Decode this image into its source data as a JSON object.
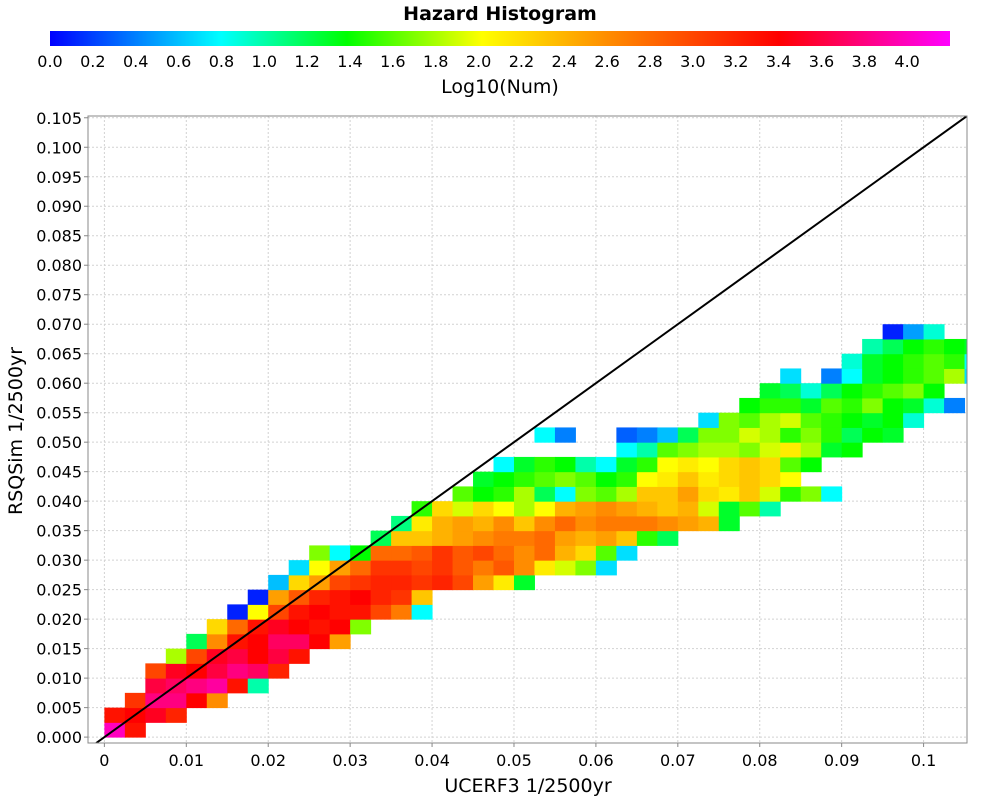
{
  "chart_data": {
    "type": "heatmap",
    "title": "Hazard Histogram",
    "colorbar": {
      "label": "Log10(Num)",
      "range": [
        0,
        4.2
      ],
      "ticks": [
        "0.0",
        "0.2",
        "0.4",
        "0.6",
        "0.8",
        "1.0",
        "1.2",
        "1.4",
        "1.6",
        "1.8",
        "2.0",
        "2.2",
        "2.4",
        "2.6",
        "2.8",
        "3.0",
        "3.2",
        "3.4",
        "3.6",
        "3.8",
        "4.0"
      ]
    },
    "xlabel": "UCERF3 1/2500yr",
    "ylabel": "RSQSim 1/2500yr",
    "xlim": [
      -0.002,
      0.1053
    ],
    "ylim": [
      -0.001,
      0.1053
    ],
    "xticks": [
      "0",
      "0.01",
      "0.02",
      "0.03",
      "0.04",
      "0.05",
      "0.06",
      "0.07",
      "0.08",
      "0.09",
      "0.1"
    ],
    "yticks": [
      "0.000",
      "0.005",
      "0.010",
      "0.015",
      "0.020",
      "0.025",
      "0.030",
      "0.035",
      "0.040",
      "0.045",
      "0.050",
      "0.055",
      "0.060",
      "0.065",
      "0.070",
      "0.075",
      "0.080",
      "0.085",
      "0.090",
      "0.095",
      "0.100",
      "0.105"
    ],
    "bin_size": [
      0.0025,
      0.0025
    ],
    "reference_line": "y = x",
    "grid": true,
    "rows": [
      {
        "y": 0.0,
        "x0": 0.0,
        "values": [
          4.0,
          3.3
        ]
      },
      {
        "y": 0.0025,
        "x0": 0.0,
        "values": [
          3.3,
          3.4,
          3.5,
          3.2
        ]
      },
      {
        "y": 0.005,
        "x0": 0.0025,
        "values": [
          3.1,
          3.8,
          3.8,
          3.4,
          2.6
        ]
      },
      {
        "y": 0.0075,
        "x0": 0.005,
        "values": [
          3.6,
          3.7,
          3.8,
          3.9,
          3.3,
          1.0
        ]
      },
      {
        "y": 0.01,
        "x0": 0.005,
        "values": [
          3.0,
          3.5,
          3.4,
          3.6,
          3.8,
          3.7,
          3.2
        ]
      },
      {
        "y": 0.0125,
        "x0": 0.0075,
        "values": [
          1.8,
          3.0,
          3.5,
          3.6,
          3.4,
          3.6,
          3.3
        ]
      },
      {
        "y": 0.015,
        "x0": 0.01,
        "values": [
          1.2,
          2.6,
          3.3,
          3.4,
          3.7,
          3.7,
          3.4,
          2.5
        ]
      },
      {
        "y": 0.0175,
        "x0": 0.0125,
        "values": [
          2.2,
          2.8,
          3.3,
          3.5,
          3.4,
          3.3,
          3.4,
          1.7
        ]
      },
      {
        "y": 0.02,
        "x0": 0.015,
        "values": [
          0.1,
          2.0,
          3.0,
          3.3,
          3.4,
          3.3,
          3.3,
          3.0,
          2.7,
          0.8
        ]
      },
      {
        "y": 0.0225,
        "x0": 0.0175,
        "values": [
          0.1,
          2.5,
          2.9,
          3.2,
          3.3,
          3.4,
          3.2,
          3.1,
          2.3
        ]
      },
      {
        "y": 0.025,
        "x0": 0.02,
        "values": [
          0.6,
          2.2,
          2.5,
          3.0,
          3.1,
          3.2,
          3.2,
          3.1,
          3.2,
          3.0,
          2.5,
          2.1,
          1.3
        ]
      },
      {
        "y": 0.0275,
        "x0": 0.0225,
        "values": [
          0.7,
          2.0,
          2.5,
          2.8,
          3.1,
          3.1,
          3.0,
          3.1,
          2.9,
          2.7,
          2.9,
          2.6,
          2.1,
          1.9,
          1.7,
          0.7
        ]
      },
      {
        "y": 0.03,
        "x0": 0.025,
        "values": [
          1.7,
          0.8,
          1.4,
          2.8,
          2.8,
          2.9,
          3.1,
          2.9,
          3.0,
          2.8,
          2.6,
          2.8,
          2.4,
          2.2,
          1.6,
          0.7
        ]
      },
      {
        "y": 0.0325,
        "x0": 0.0325,
        "values": [
          1.2,
          2.3,
          2.3,
          2.4,
          2.5,
          2.6,
          2.7,
          2.7,
          2.8,
          2.5,
          2.4,
          2.5,
          2.3,
          1.5,
          1.2
        ]
      },
      {
        "y": 0.035,
        "x0": 0.035,
        "values": [
          1.1,
          2.1,
          2.4,
          2.5,
          2.4,
          2.6,
          2.3,
          2.6,
          2.8,
          2.6,
          2.7,
          2.7,
          2.7,
          2.6,
          2.5,
          2.4,
          1.3
        ]
      },
      {
        "y": 0.0375,
        "x0": 0.0375,
        "values": [
          1.5,
          2.2,
          1.9,
          2.2,
          2.0,
          1.8,
          2.0,
          2.4,
          2.5,
          2.6,
          2.5,
          2.4,
          2.3,
          2.4,
          1.9,
          1.3,
          1.6,
          1.0
        ]
      },
      {
        "y": 0.04,
        "x0": 0.0425,
        "values": [
          1.6,
          1.4,
          1.5,
          1.8,
          1.2,
          0.8,
          1.7,
          1.6,
          1.8,
          2.3,
          2.3,
          2.5,
          2.2,
          2.1,
          2.3,
          1.9,
          1.5,
          1.7,
          0.8
        ]
      },
      {
        "y": 0.0425,
        "x0": 0.045,
        "values": [
          1.3,
          1.4,
          1.5,
          1.6,
          1.7,
          1.6,
          1.4,
          1.5,
          2.0,
          2.1,
          2.3,
          2.1,
          2.2,
          2.3,
          2.2,
          2.0
        ]
      },
      {
        "y": 0.045,
        "x0": 0.0475,
        "values": [
          0.8,
          1.3,
          1.5,
          1.4,
          1.0,
          0.8,
          1.3,
          1.5,
          2.0,
          2.1,
          2.0,
          2.2,
          2.3,
          2.2,
          1.6,
          1.4
        ]
      },
      {
        "y": 0.0475,
        "x0": 0.0575,
        "values": [
          null,
          null,
          0.8,
          1.0,
          1.6,
          1.7,
          1.8,
          1.8,
          1.7,
          1.9,
          2.1,
          1.8,
          1.3,
          1.4
        ]
      },
      {
        "y": 0.05,
        "x0": 0.0525,
        "values": [
          0.8,
          0.4,
          null,
          null,
          0.3,
          0.4,
          0.6,
          1.2,
          1.7,
          1.7,
          1.9,
          1.8,
          1.5,
          1.7,
          1.5,
          1.2,
          1.4,
          1.3
        ]
      },
      {
        "y": 0.0525,
        "x0": 0.0725,
        "values": [
          0.7,
          1.7,
          1.6,
          1.8,
          1.9,
          1.6,
          1.5,
          1.4,
          1.3,
          1.4,
          0.9
        ]
      },
      {
        "y": 0.055,
        "x0": 0.0775,
        "values": [
          1.4,
          1.5,
          1.5,
          1.3,
          1.6,
          1.5,
          1.7,
          1.4,
          1.3,
          0.9,
          0.4
        ]
      },
      {
        "y": 0.0575,
        "x0": 0.08,
        "values": [
          1.3,
          1.2,
          0.9,
          1.2,
          1.4,
          1.5,
          1.6,
          1.7,
          1.4
        ]
      },
      {
        "y": 0.06,
        "x0": 0.0825,
        "values": [
          0.7,
          null,
          0.4,
          0.8,
          1.3,
          1.4,
          1.5,
          1.6,
          1.8,
          0.7
        ]
      },
      {
        "y": 0.0625,
        "x0": 0.09,
        "values": [
          0.9,
          1.3,
          1.4,
          1.5,
          1.6,
          1.5,
          0.8
        ]
      },
      {
        "y": 0.065,
        "x0": 0.0925,
        "values": [
          1.0,
          1.2,
          1.4,
          1.5,
          1.4,
          1.3
        ]
      },
      {
        "y": 0.0675,
        "x0": 0.095,
        "values": [
          0.1,
          0.5,
          0.9
        ]
      }
    ]
  }
}
